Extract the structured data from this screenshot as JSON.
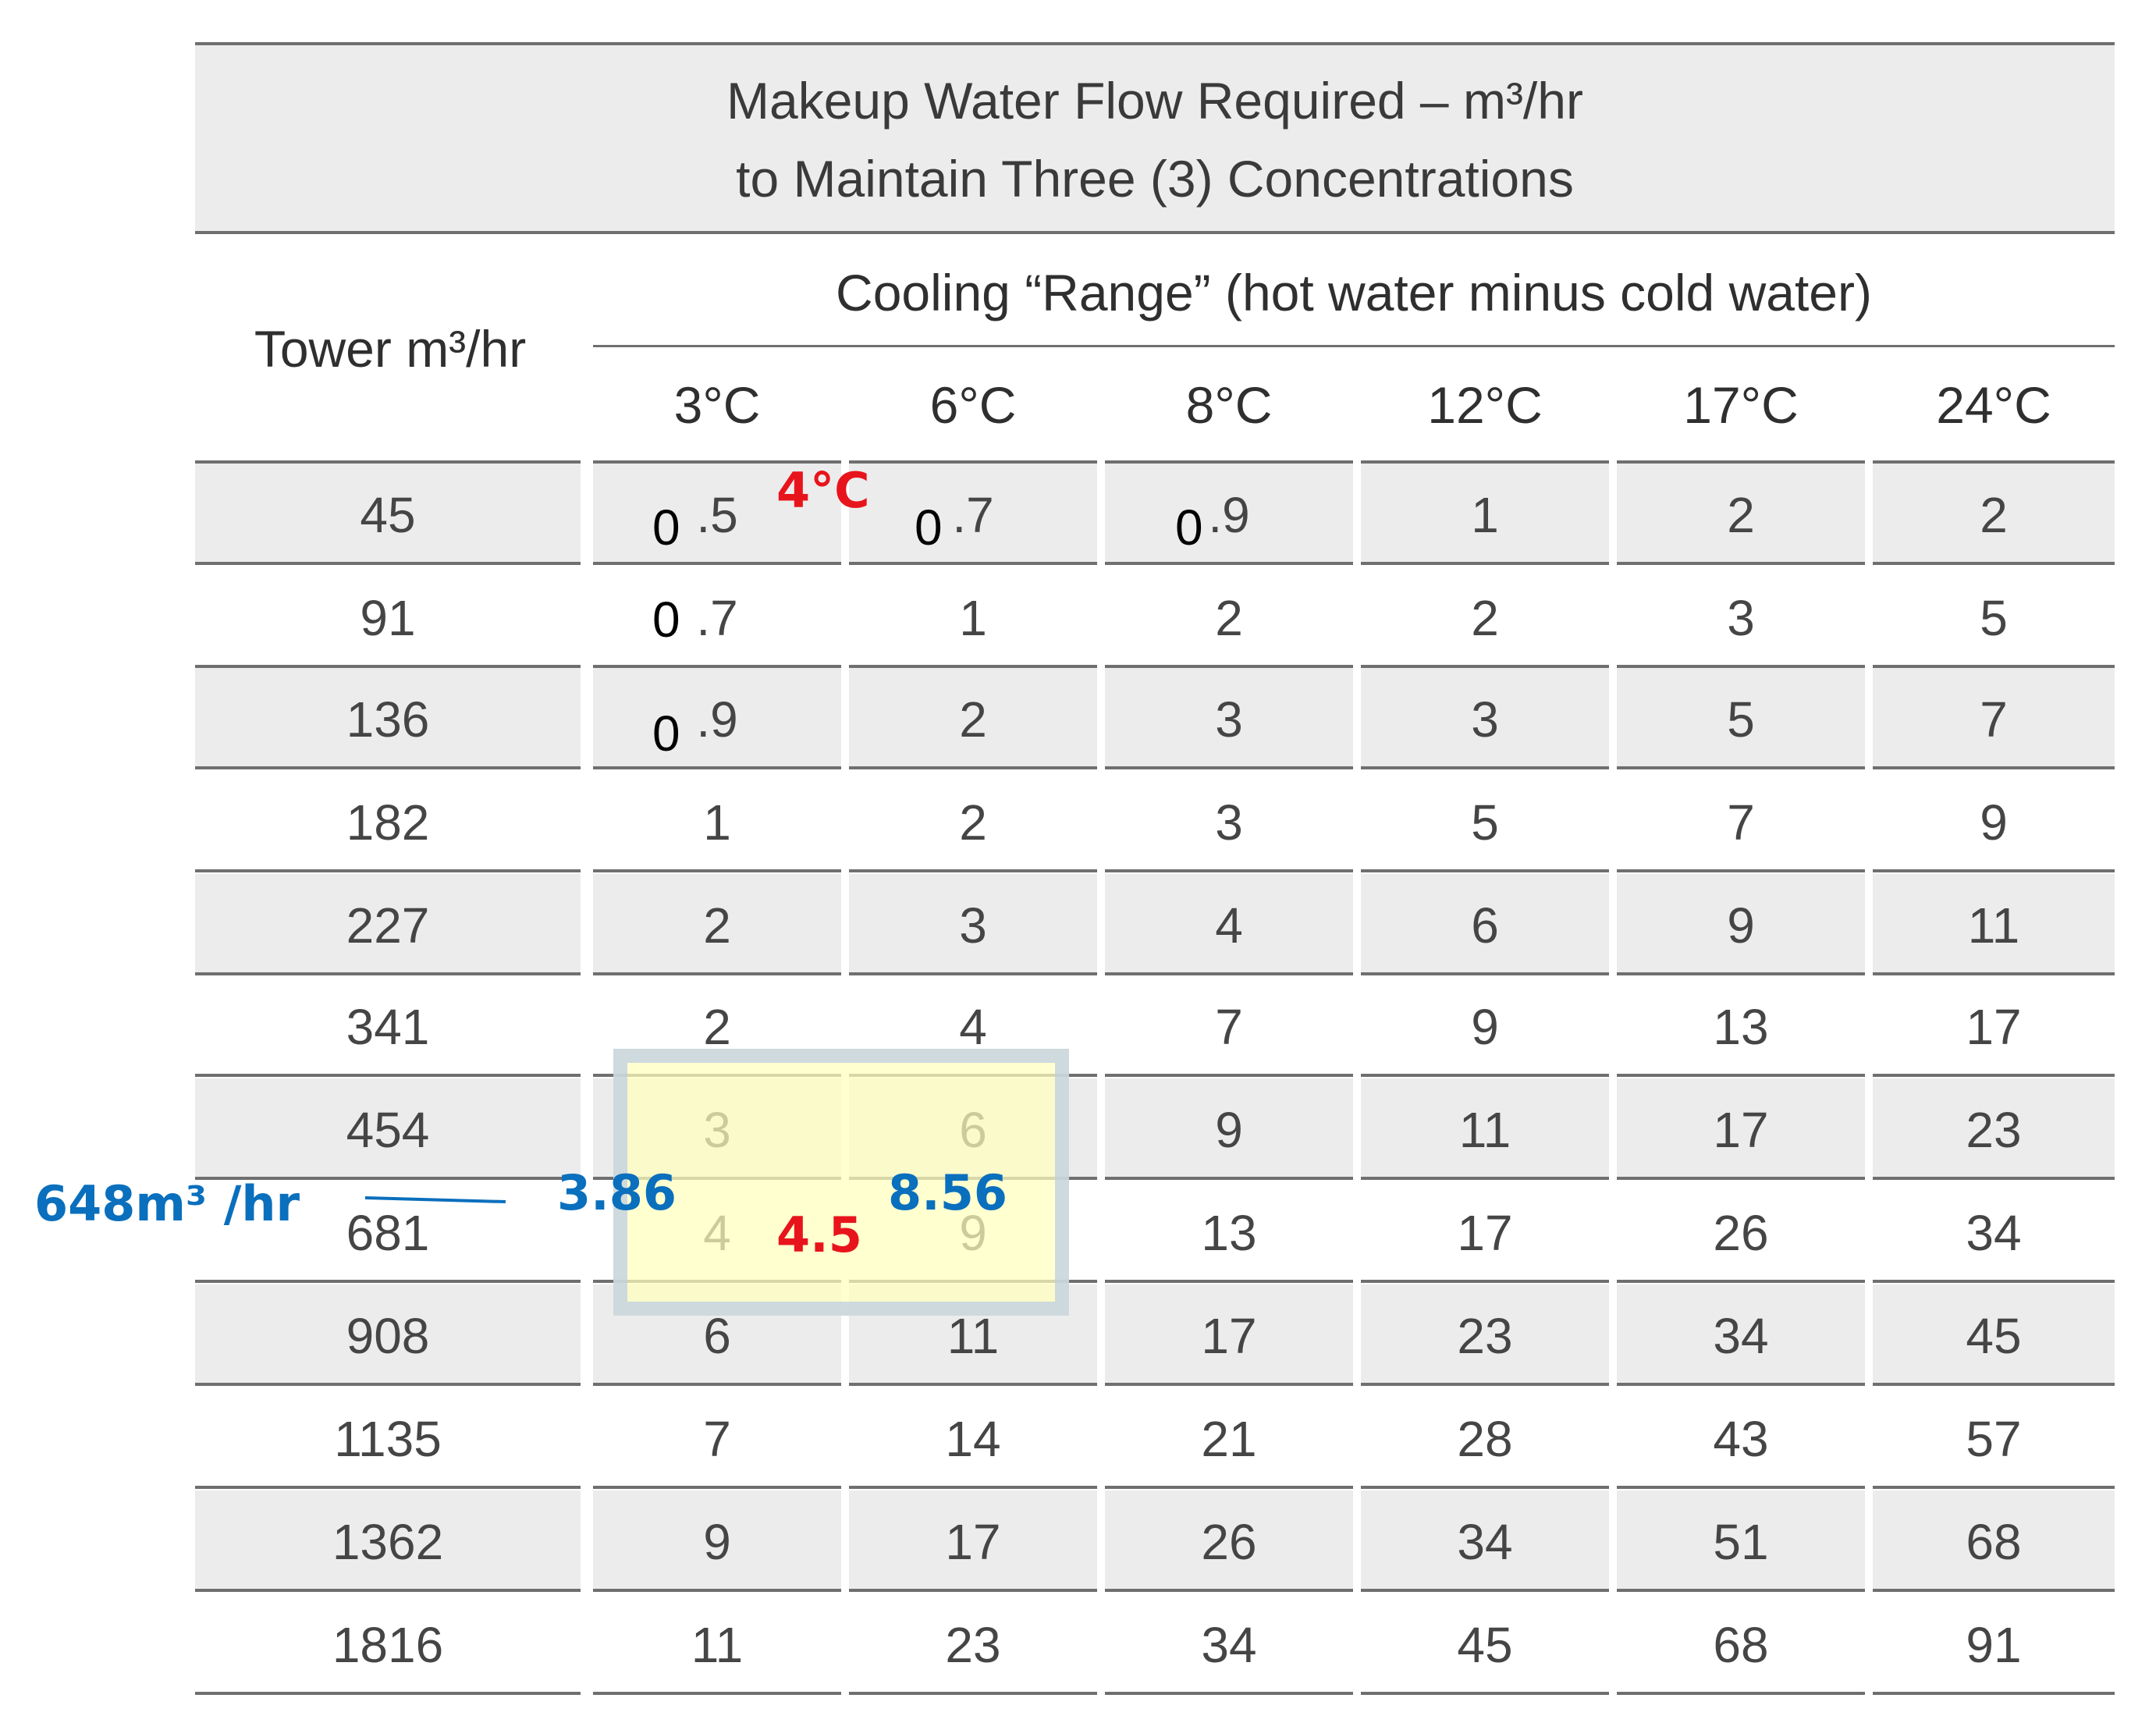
{
  "title": {
    "line1": "Makeup Water Flow Required – m³/hr",
    "line2": "to Maintain Three (3) Concentrations"
  },
  "row_header": "Tower m³/hr",
  "range_header": "Cooling “Range” (hot water minus cold water)",
  "columns": [
    "3°C",
    "6°C",
    "8°C",
    "12°C",
    "17°C",
    "24°C"
  ],
  "rows": [
    {
      "tower": "45",
      "values": [
        ".5",
        ".7",
        ".9",
        "1",
        "2",
        "2"
      ]
    },
    {
      "tower": "91",
      "values": [
        ".7",
        "1",
        "2",
        "2",
        "3",
        "5"
      ]
    },
    {
      "tower": "136",
      "values": [
        ".9",
        "2",
        "3",
        "3",
        "5",
        "7"
      ]
    },
    {
      "tower": "182",
      "values": [
        "1",
        "2",
        "3",
        "5",
        "7",
        "9"
      ]
    },
    {
      "tower": "227",
      "values": [
        "2",
        "3",
        "4",
        "6",
        "9",
        "11"
      ]
    },
    {
      "tower": "341",
      "values": [
        "2",
        "4",
        "7",
        "9",
        "13",
        "17"
      ]
    },
    {
      "tower": "454",
      "values": [
        "3",
        "6",
        "9",
        "11",
        "17",
        "23"
      ]
    },
    {
      "tower": "681",
      "values": [
        "4",
        "9",
        "13",
        "17",
        "26",
        "34"
      ]
    },
    {
      "tower": "908",
      "values": [
        "6",
        "11",
        "17",
        "23",
        "34",
        "45"
      ]
    },
    {
      "tower": "1135",
      "values": [
        "7",
        "14",
        "21",
        "28",
        "43",
        "57"
      ]
    },
    {
      "tower": "1362",
      "values": [
        "9",
        "17",
        "26",
        "34",
        "51",
        "68"
      ]
    },
    {
      "tower": "1816",
      "values": [
        "11",
        "23",
        "34",
        "45",
        "68",
        "91"
      ]
    }
  ],
  "overlay_zeros": [
    "0",
    "0",
    "0",
    "0",
    "0"
  ],
  "annotations": {
    "temp_label": "4°C",
    "interp_result": "4.5",
    "flow_label": "648m³ /hr",
    "left_interp": "3.86",
    "right_interp": "8.56"
  },
  "colors": {
    "annotation_red": "#e8141c",
    "annotation_blue": "#0a6fbd",
    "band": "#ececec",
    "rule": "#6f6f6f"
  }
}
